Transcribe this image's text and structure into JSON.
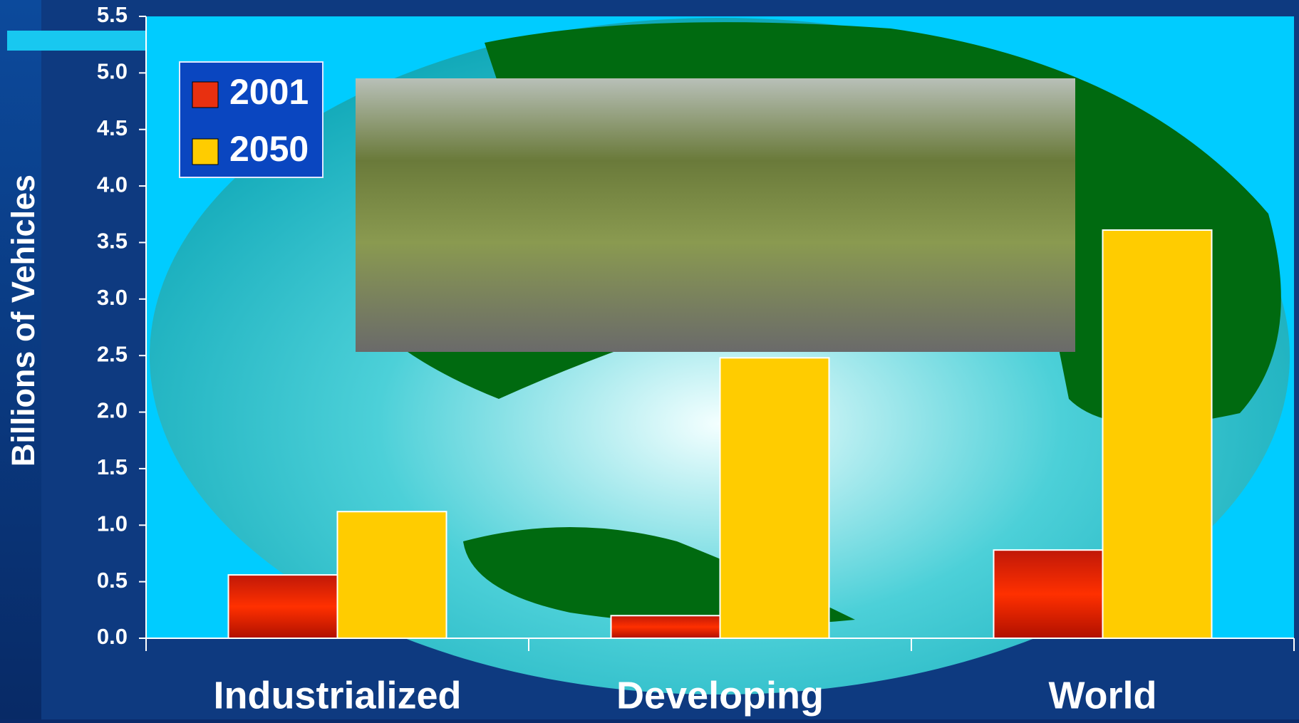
{
  "chart_data": {
    "type": "bar",
    "y_label": "Billions of Vehicles",
    "categories": [
      "Industrialized",
      "Developing",
      "World"
    ],
    "series": [
      {
        "name": "2001",
        "color": "#e83010",
        "values": [
          0.56,
          0.2,
          0.78
        ]
      },
      {
        "name": "2050",
        "color": "#ffcc00",
        "values": [
          1.12,
          2.48,
          3.61
        ]
      }
    ],
    "ylim": [
      0,
      5.5
    ],
    "yticks": [
      {
        "value": 0,
        "label": "0.0"
      },
      0.5,
      {
        "value": 1,
        "label": "1.0"
      },
      1.5,
      {
        "value": 2,
        "label": "2.0"
      },
      2.5,
      {
        "value": 3,
        "label": "3.0"
      },
      3.5,
      {
        "value": 4,
        "label": "4.0"
      },
      4.5,
      {
        "value": 5,
        "label": "5.0"
      },
      5.5
    ],
    "legend": "top-left"
  }
}
